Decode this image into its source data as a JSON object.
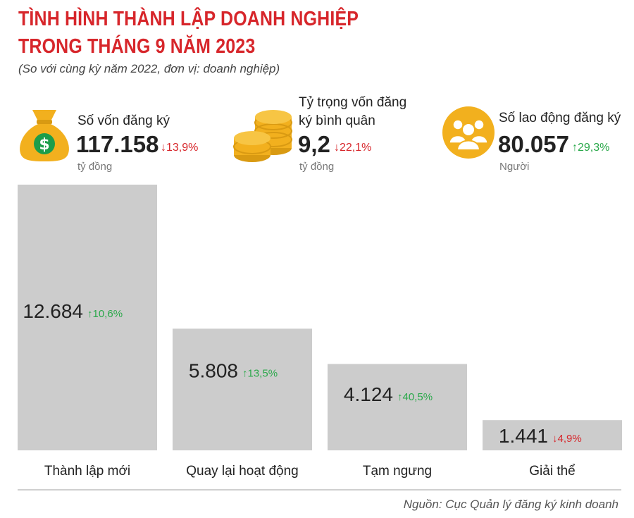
{
  "title_line1": "TÌNH HÌNH THÀNH LẬP DOANH NGHIỆP",
  "title_line2": "TRONG THÁNG 9 NĂM 2023",
  "subtitle": "(So với cùng kỳ năm 2022, đơn vị: doanh nghiệp)",
  "stats": [
    {
      "label": "Số vốn đăng ký",
      "value": "117.158",
      "change": "13,9%",
      "direction": "down",
      "unit": "tỷ đồng",
      "icon": "money-bag-icon"
    },
    {
      "label_line1": "Tỷ trọng vốn đăng",
      "label_line2": "ký bình quân",
      "value": "9,2",
      "change": "22,1%",
      "direction": "down",
      "unit": "tỷ đồng",
      "icon": "coins-icon"
    },
    {
      "label": "Số lao động đăng ký",
      "value": "80.057",
      "change": "29,3%",
      "direction": "up",
      "unit": "Người",
      "icon": "people-icon"
    }
  ],
  "chart_data": {
    "type": "bar",
    "categories": [
      "Thành lập mới",
      "Quay lại hoạt động",
      "Tạm ngưng",
      "Giải thể"
    ],
    "values": [
      12684,
      5808,
      4124,
      1441
    ],
    "value_labels": [
      "12.684",
      "5.808",
      "4.124",
      "1.441"
    ],
    "changes": [
      "10,6%",
      "13,5%",
      "40,5%",
      "4,9%"
    ],
    "directions": [
      "up",
      "up",
      "up",
      "down"
    ],
    "ylim": [
      0,
      12684
    ],
    "grid": false
  },
  "colors": {
    "title": "#d7262b",
    "bar": "#cccccc",
    "up": "#2aa84a",
    "down": "#d7262b",
    "icon": "#f2b01e"
  },
  "arrows": {
    "up": "↑",
    "down": "↓"
  },
  "source": "Nguồn: Cục Quản lý đăng ký kinh doanh"
}
